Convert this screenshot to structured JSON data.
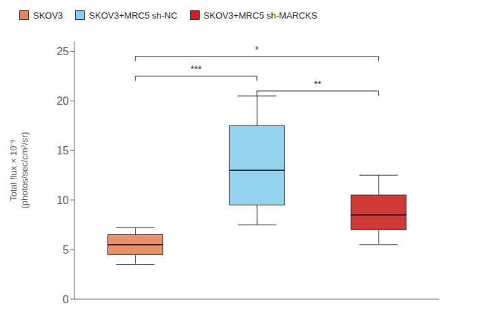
{
  "chart_data": {
    "type": "box",
    "ylabel": "Total flux × 10⁻⁹\n(photos/sec/cm²/sr)",
    "series": [
      {
        "name": "SKOV3",
        "color": "#E8845A",
        "median": 5.5,
        "q1": 4.5,
        "q3": 6.5,
        "whisker_low": 3.5,
        "whisker_high": 7.2
      },
      {
        "name": "SKOV3+MRC5 sh-NC",
        "color": "#87CEEB",
        "median": 13.0,
        "q1": 9.5,
        "q3": 17.5,
        "whisker_low": 7.5,
        "whisker_high": 20.5
      },
      {
        "name": "SKOV3+MRC5 sh-MARCKS",
        "color": "#CC2222",
        "median": 8.5,
        "q1": 7.0,
        "q3": 10.5,
        "whisker_low": 5.5,
        "whisker_high": 12.5
      }
    ],
    "annotations": [
      {
        "x1": "SKOV3",
        "x2": "SKOV3+MRC5 sh-NC",
        "y": 22.5,
        "text": "***"
      },
      {
        "x1": "SKOV3",
        "x2": "SKOV3+MRC5 sh-MARCKS",
        "y": 24.5,
        "text": "*"
      },
      {
        "x1": "SKOV3+MRC5 sh-NC",
        "x2": "SKOV3+MRC5 sh-MARCKS",
        "y": 21.0,
        "text": "**"
      }
    ],
    "ylim": [
      0,
      26
    ],
    "yticks": [
      0,
      5,
      10,
      15,
      20,
      25
    ],
    "legend": "upper left",
    "tick_labels": "y",
    "grid": false
  }
}
